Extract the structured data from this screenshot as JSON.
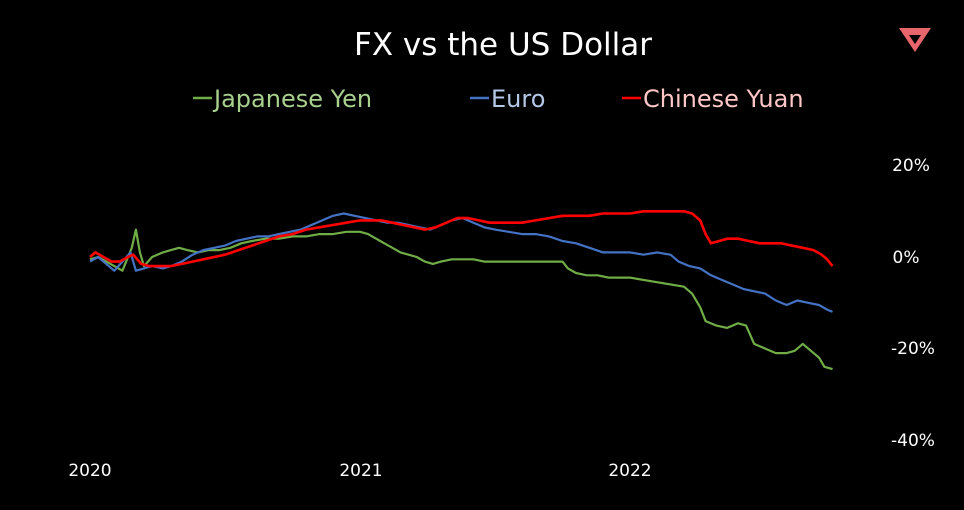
{
  "brand": {
    "logo_icon": "triangle-logo-icon",
    "logo_color": "#e8656b"
  },
  "chart_data": {
    "type": "line",
    "title": "FX vs the US Dollar",
    "xlabel": "",
    "ylabel": "",
    "x_tick_labels": [
      "2020",
      "2021",
      "2022"
    ],
    "y_tick_labels": [
      "20%",
      "0%",
      "-20%",
      "-40%"
    ],
    "y_ticks": [
      20,
      0,
      -20,
      -40
    ],
    "ylim": [
      -40,
      20
    ],
    "grid": false,
    "legend_position": "top",
    "y_axis_side": "right",
    "x_unit": "year",
    "series": [
      {
        "name": "Japanese Yen",
        "color": "#70ad47",
        "points": [
          [
            2020.0,
            -0.5
          ],
          [
            2020.03,
            0.0
          ],
          [
            2020.06,
            -1.0
          ],
          [
            2020.09,
            -2.0
          ],
          [
            2020.12,
            -3.0
          ],
          [
            2020.155,
            2.0
          ],
          [
            2020.17,
            6.0
          ],
          [
            2020.185,
            1.0
          ],
          [
            2020.2,
            -2.0
          ],
          [
            2020.23,
            0.0
          ],
          [
            2020.27,
            1.0
          ],
          [
            2020.3,
            1.5
          ],
          [
            2020.33,
            2.0
          ],
          [
            2020.36,
            1.5
          ],
          [
            2020.4,
            1.0
          ],
          [
            2020.44,
            1.5
          ],
          [
            2020.48,
            1.5
          ],
          [
            2020.52,
            2.0
          ],
          [
            2020.56,
            3.0
          ],
          [
            2020.6,
            3.5
          ],
          [
            2020.65,
            4.0
          ],
          [
            2020.7,
            4.0
          ],
          [
            2020.75,
            4.5
          ],
          [
            2020.8,
            4.5
          ],
          [
            2020.85,
            5.0
          ],
          [
            2020.9,
            5.0
          ],
          [
            2020.95,
            5.5
          ],
          [
            2021.0,
            5.5
          ],
          [
            2021.03,
            5.0
          ],
          [
            2021.06,
            4.0
          ],
          [
            2021.09,
            3.0
          ],
          [
            2021.12,
            2.0
          ],
          [
            2021.15,
            1.0
          ],
          [
            2021.18,
            0.5
          ],
          [
            2021.21,
            0.0
          ],
          [
            2021.24,
            -1.0
          ],
          [
            2021.27,
            -1.5
          ],
          [
            2021.3,
            -1.0
          ],
          [
            2021.34,
            -0.5
          ],
          [
            2021.38,
            -0.5
          ],
          [
            2021.42,
            -0.5
          ],
          [
            2021.46,
            -1.0
          ],
          [
            2021.5,
            -1.0
          ],
          [
            2021.55,
            -1.0
          ],
          [
            2021.6,
            -1.0
          ],
          [
            2021.65,
            -1.0
          ],
          [
            2021.7,
            -1.0
          ],
          [
            2021.75,
            -1.0
          ],
          [
            2021.77,
            -2.5
          ],
          [
            2021.8,
            -3.5
          ],
          [
            2021.84,
            -4.0
          ],
          [
            2021.88,
            -4.0
          ],
          [
            2021.92,
            -4.5
          ],
          [
            2021.96,
            -4.5
          ],
          [
            2022.0,
            -4.5
          ],
          [
            2022.05,
            -5.0
          ],
          [
            2022.1,
            -5.5
          ],
          [
            2022.15,
            -6.0
          ],
          [
            2022.2,
            -6.5
          ],
          [
            2022.23,
            -8.0
          ],
          [
            2022.26,
            -11.0
          ],
          [
            2022.28,
            -14.0
          ],
          [
            2022.32,
            -15.0
          ],
          [
            2022.36,
            -15.5
          ],
          [
            2022.4,
            -14.5
          ],
          [
            2022.43,
            -15.0
          ],
          [
            2022.46,
            -19.0
          ],
          [
            2022.5,
            -20.0
          ],
          [
            2022.54,
            -21.0
          ],
          [
            2022.58,
            -21.0
          ],
          [
            2022.61,
            -20.5
          ],
          [
            2022.64,
            -19.0
          ],
          [
            2022.67,
            -20.5
          ],
          [
            2022.7,
            -22.0
          ],
          [
            2022.72,
            -24.0
          ],
          [
            2022.75,
            -24.5
          ]
        ]
      },
      {
        "name": "Euro",
        "color": "#4472c4",
        "points": [
          [
            2020.0,
            -1.0
          ],
          [
            2020.03,
            0.0
          ],
          [
            2020.06,
            -1.5
          ],
          [
            2020.09,
            -3.0
          ],
          [
            2020.12,
            -1.0
          ],
          [
            2020.15,
            1.0
          ],
          [
            2020.17,
            -3.0
          ],
          [
            2020.2,
            -2.5
          ],
          [
            2020.23,
            -2.0
          ],
          [
            2020.27,
            -2.5
          ],
          [
            2020.3,
            -2.0
          ],
          [
            2020.34,
            -1.0
          ],
          [
            2020.38,
            0.5
          ],
          [
            2020.42,
            1.5
          ],
          [
            2020.46,
            2.0
          ],
          [
            2020.5,
            2.5
          ],
          [
            2020.54,
            3.5
          ],
          [
            2020.58,
            4.0
          ],
          [
            2020.62,
            4.5
          ],
          [
            2020.66,
            4.5
          ],
          [
            2020.7,
            5.0
          ],
          [
            2020.74,
            5.5
          ],
          [
            2020.78,
            6.0
          ],
          [
            2020.82,
            7.0
          ],
          [
            2020.86,
            8.0
          ],
          [
            2020.9,
            9.0
          ],
          [
            2020.94,
            9.5
          ],
          [
            2020.98,
            9.0
          ],
          [
            2021.02,
            8.5
          ],
          [
            2021.06,
            8.0
          ],
          [
            2021.1,
            7.5
          ],
          [
            2021.14,
            7.5
          ],
          [
            2021.18,
            7.0
          ],
          [
            2021.22,
            6.5
          ],
          [
            2021.26,
            6.0
          ],
          [
            2021.3,
            7.0
          ],
          [
            2021.34,
            8.0
          ],
          [
            2021.38,
            8.5
          ],
          [
            2021.42,
            7.5
          ],
          [
            2021.46,
            6.5
          ],
          [
            2021.5,
            6.0
          ],
          [
            2021.55,
            5.5
          ],
          [
            2021.6,
            5.0
          ],
          [
            2021.65,
            5.0
          ],
          [
            2021.7,
            4.5
          ],
          [
            2021.75,
            3.5
          ],
          [
            2021.8,
            3.0
          ],
          [
            2021.85,
            2.0
          ],
          [
            2021.9,
            1.0
          ],
          [
            2021.95,
            1.0
          ],
          [
            2022.0,
            1.0
          ],
          [
            2022.05,
            0.5
          ],
          [
            2022.1,
            1.0
          ],
          [
            2022.15,
            0.5
          ],
          [
            2022.18,
            -1.0
          ],
          [
            2022.22,
            -2.0
          ],
          [
            2022.26,
            -2.5
          ],
          [
            2022.3,
            -4.0
          ],
          [
            2022.34,
            -5.0
          ],
          [
            2022.38,
            -6.0
          ],
          [
            2022.42,
            -7.0
          ],
          [
            2022.46,
            -7.5
          ],
          [
            2022.5,
            -8.0
          ],
          [
            2022.54,
            -9.5
          ],
          [
            2022.58,
            -10.5
          ],
          [
            2022.62,
            -9.5
          ],
          [
            2022.66,
            -10.0
          ],
          [
            2022.7,
            -10.5
          ],
          [
            2022.73,
            -11.5
          ],
          [
            2022.75,
            -12.0
          ]
        ]
      },
      {
        "name": "Chinese Yuan",
        "color": "#ff0000",
        "points": [
          [
            2020.0,
            0.0
          ],
          [
            2020.02,
            1.0
          ],
          [
            2020.05,
            0.0
          ],
          [
            2020.08,
            -1.0
          ],
          [
            2020.11,
            -1.0
          ],
          [
            2020.14,
            0.0
          ],
          [
            2020.16,
            0.5
          ],
          [
            2020.19,
            -1.5
          ],
          [
            2020.22,
            -2.0
          ],
          [
            2020.26,
            -2.0
          ],
          [
            2020.3,
            -2.0
          ],
          [
            2020.34,
            -1.5
          ],
          [
            2020.38,
            -1.0
          ],
          [
            2020.42,
            -0.5
          ],
          [
            2020.46,
            0.0
          ],
          [
            2020.5,
            0.5
          ],
          [
            2020.55,
            1.5
          ],
          [
            2020.6,
            2.5
          ],
          [
            2020.65,
            3.5
          ],
          [
            2020.7,
            4.5
          ],
          [
            2020.75,
            5.0
          ],
          [
            2020.8,
            6.0
          ],
          [
            2020.85,
            6.5
          ],
          [
            2020.9,
            7.0
          ],
          [
            2020.95,
            7.5
          ],
          [
            2021.0,
            8.0
          ],
          [
            2021.04,
            8.0
          ],
          [
            2021.08,
            8.0
          ],
          [
            2021.12,
            7.5
          ],
          [
            2021.16,
            7.0
          ],
          [
            2021.2,
            6.5
          ],
          [
            2021.24,
            6.0
          ],
          [
            2021.28,
            6.5
          ],
          [
            2021.32,
            7.5
          ],
          [
            2021.36,
            8.5
          ],
          [
            2021.4,
            8.5
          ],
          [
            2021.44,
            8.0
          ],
          [
            2021.48,
            7.5
          ],
          [
            2021.52,
            7.5
          ],
          [
            2021.56,
            7.5
          ],
          [
            2021.6,
            7.5
          ],
          [
            2021.65,
            8.0
          ],
          [
            2021.7,
            8.5
          ],
          [
            2021.75,
            9.0
          ],
          [
            2021.8,
            9.0
          ],
          [
            2021.85,
            9.0
          ],
          [
            2021.9,
            9.5
          ],
          [
            2021.95,
            9.5
          ],
          [
            2022.0,
            9.5
          ],
          [
            2022.05,
            10.0
          ],
          [
            2022.1,
            10.0
          ],
          [
            2022.15,
            10.0
          ],
          [
            2022.2,
            10.0
          ],
          [
            2022.23,
            9.5
          ],
          [
            2022.26,
            8.0
          ],
          [
            2022.28,
            5.0
          ],
          [
            2022.3,
            3.0
          ],
          [
            2022.33,
            3.5
          ],
          [
            2022.36,
            4.0
          ],
          [
            2022.4,
            4.0
          ],
          [
            2022.44,
            3.5
          ],
          [
            2022.48,
            3.0
          ],
          [
            2022.52,
            3.0
          ],
          [
            2022.56,
            3.0
          ],
          [
            2022.6,
            2.5
          ],
          [
            2022.64,
            2.0
          ],
          [
            2022.68,
            1.5
          ],
          [
            2022.71,
            0.5
          ],
          [
            2022.73,
            -0.5
          ],
          [
            2022.75,
            -2.0
          ]
        ]
      }
    ]
  }
}
